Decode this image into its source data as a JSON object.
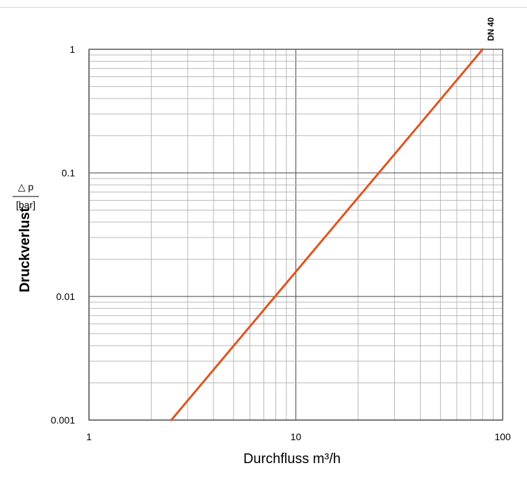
{
  "chart_data": {
    "type": "line",
    "xscale": "log",
    "yscale": "log",
    "xlim": [
      1,
      100
    ],
    "ylim": [
      0.001,
      1
    ],
    "x_ticks": [
      "1",
      "10",
      "100"
    ],
    "y_ticks": [
      "1",
      "0.1",
      "0.01",
      "0.001"
    ],
    "xlabel": "Durchfluss m³/h",
    "ylabel": "Druckverlust",
    "ylabel_symbol": "△ p",
    "ylabel_unit": "[bar]",
    "grid": true,
    "series": [
      {
        "name": "DN 40",
        "color": "#e0531c",
        "x": [
          2.5,
          80
        ],
        "y": [
          0.001,
          1
        ]
      }
    ]
  }
}
